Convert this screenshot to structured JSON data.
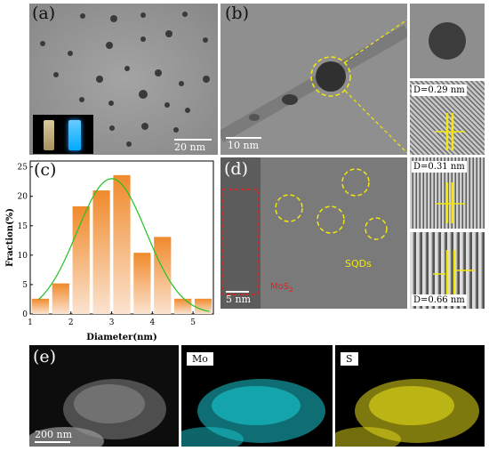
{
  "panel_a": {
    "label": "(a)",
    "scale": "20 nm"
  },
  "panel_b": {
    "label": "(b)",
    "scale": "10 nm",
    "d_label": "D=0.29 nm"
  },
  "panel_c": {
    "label": "(c)"
  },
  "panel_d": {
    "label": "(d)",
    "scale": "5 nm",
    "mos2_label": "MoS",
    "mos2_sub": "2",
    "sqd_label": "SQDs",
    "d_label_1": "D=0.31 nm",
    "d_label_2": "D=0.66 nm"
  },
  "panel_e": {
    "label": "(e)",
    "scale": "200 nm",
    "element_1": "Mo",
    "element_2": "S"
  },
  "colors": {
    "bar_orange": "#f08a2c",
    "fit_green": "#1fc41f",
    "mo_map": "#19c8d2",
    "s_map": "#e5dc1a",
    "highlight_yellow": "#f2e70a",
    "mos2_red": "#e02020"
  },
  "chart_data": {
    "type": "bar",
    "title": "",
    "xlabel": "Diameter(nm)",
    "ylabel": "Fraction(%)",
    "xlim": [
      1,
      5.5
    ],
    "ylim": [
      0,
      26
    ],
    "xticks": [
      "1",
      "2",
      "3",
      "4",
      "5"
    ],
    "yticks": [
      "0",
      "5",
      "10",
      "15",
      "20",
      "25"
    ],
    "x": [
      1.25,
      1.75,
      2.25,
      2.75,
      3.25,
      3.75,
      4.25,
      4.75,
      5.25
    ],
    "values": [
      2.6,
      5.2,
      18.3,
      21.0,
      23.6,
      10.4,
      13.1,
      2.6,
      2.6
    ],
    "fit": {
      "type": "gaussian",
      "center": 3.0,
      "peak": 23.0,
      "sigma": 0.85
    }
  }
}
